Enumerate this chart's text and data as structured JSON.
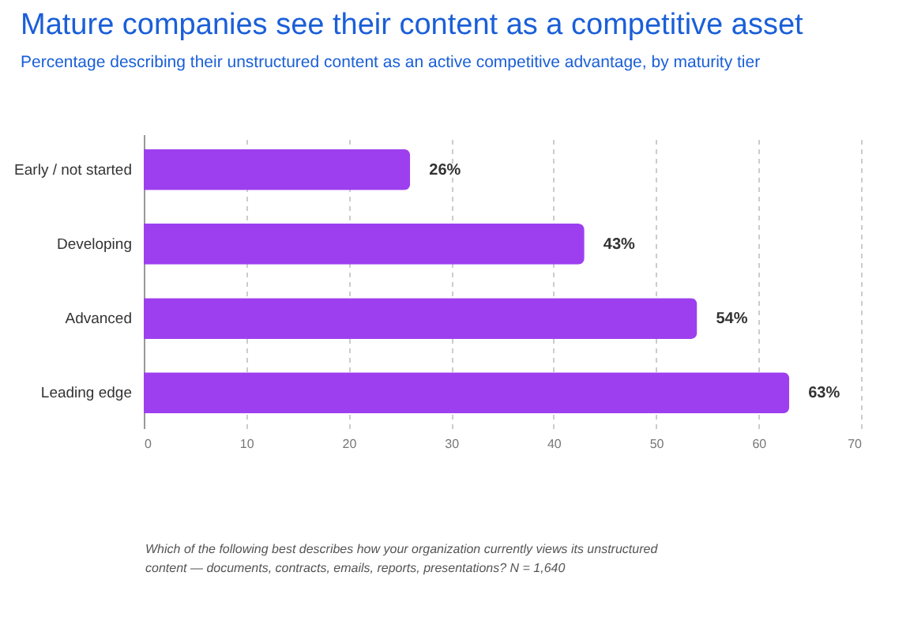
{
  "chart_data": {
    "type": "bar",
    "orientation": "horizontal",
    "title": "Mature companies see their content as a competitive asset",
    "subtitle": "Percentage describing their unstructured content as an active competitive advantage, by maturity tier",
    "categories": [
      "Early / not started",
      "Developing",
      "Advanced",
      "Leading edge"
    ],
    "values": [
      26,
      43,
      54,
      63
    ],
    "color": "#9d3fef",
    "value_labels": [
      "26%",
      "43%",
      "54%",
      "63%"
    ],
    "xlim": [
      0,
      70
    ],
    "xticks": [
      0,
      10,
      20,
      30,
      40,
      50,
      60,
      70
    ],
    "grid": "x",
    "annotations": [
      "Which of the following best describes how your organization currently views its unstructured content — documents, contracts, emails, reports, presentations? N = 1,640"
    ]
  }
}
